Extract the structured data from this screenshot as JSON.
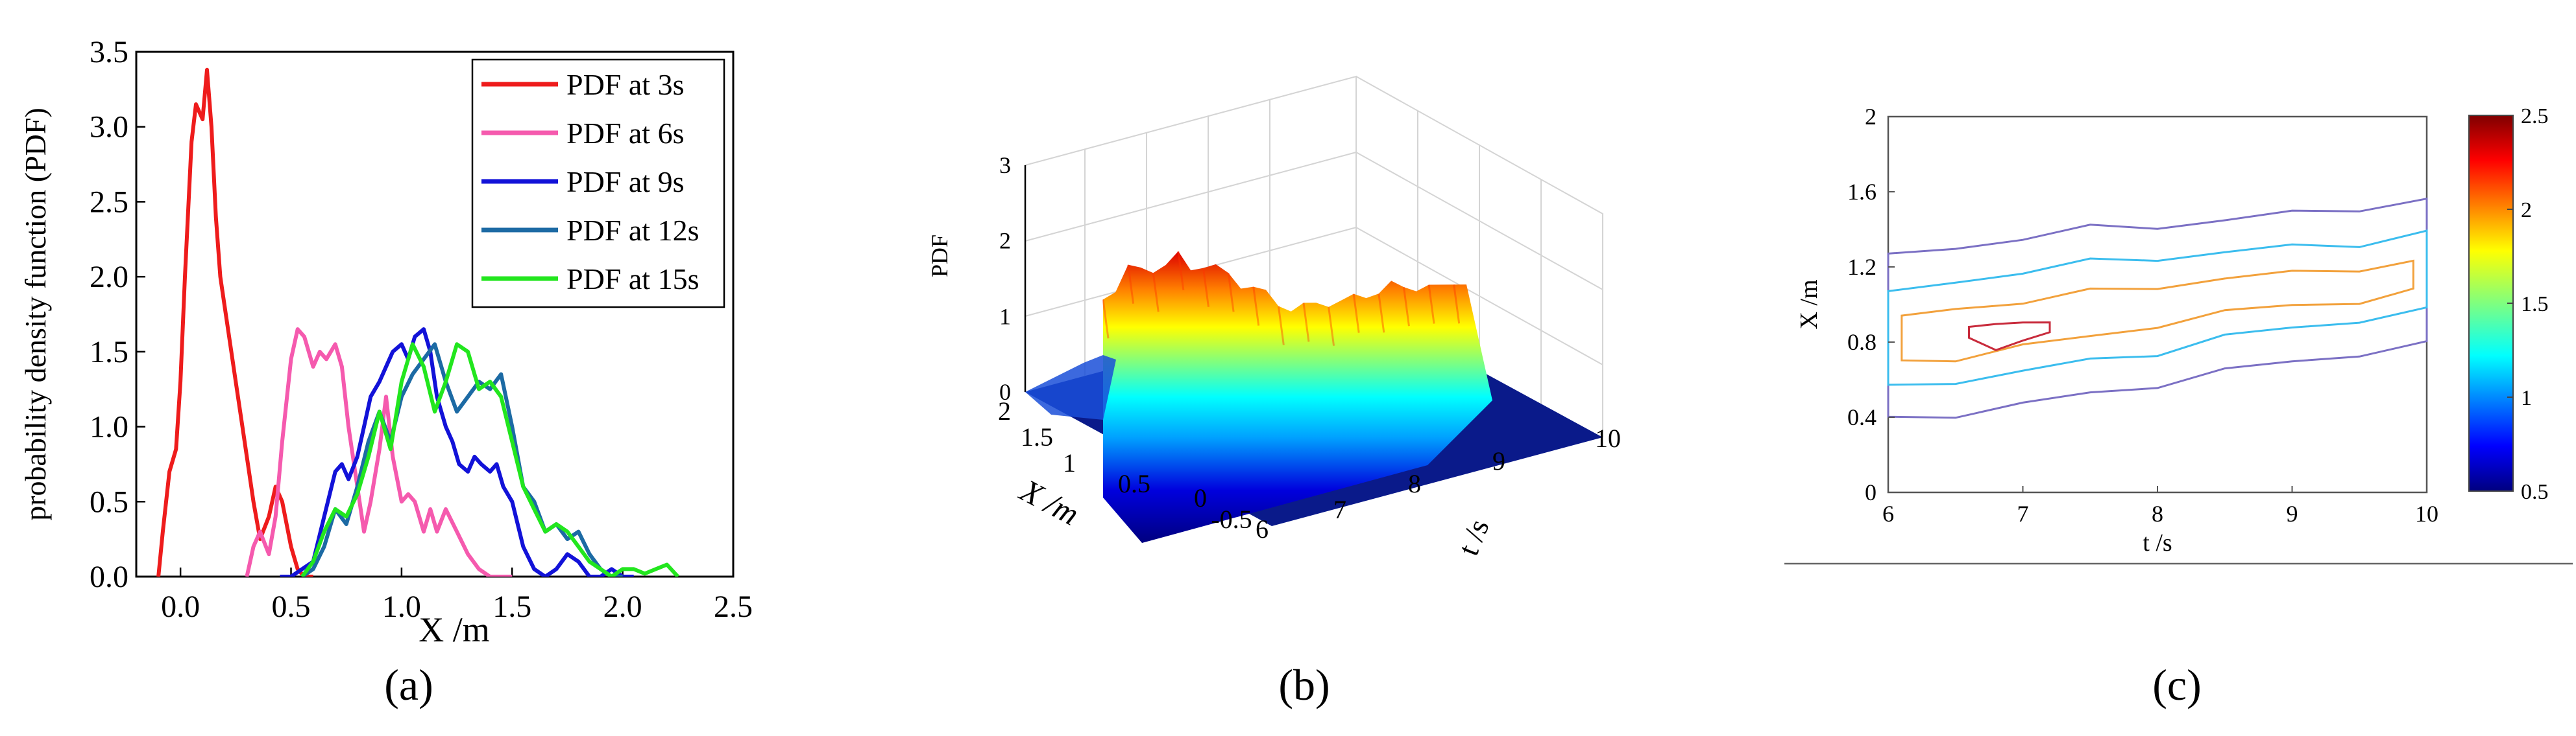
{
  "figure": {
    "panel_labels": [
      "(a)",
      "(b)",
      "(c)"
    ],
    "colors": {
      "red": "#ee1c1c",
      "pink": "#f55aae",
      "blue": "#1212d8",
      "steel": "#1c6aa4",
      "green": "#22e61e",
      "axis": "#000000",
      "grid": "#cccccc"
    }
  },
  "chart_data": [
    {
      "type": "line",
      "panel": "(a)",
      "title": "",
      "xlabel": "X /m",
      "ylabel": "probability density function (PDF)",
      "xlim": [
        -0.2,
        2.5
      ],
      "ylim": [
        0,
        3.5
      ],
      "xticks": [
        "0.0",
        "0.5",
        "1.0",
        "1.5",
        "2.0",
        "2.5"
      ],
      "yticks": [
        "0.0",
        "0.5",
        "1.0",
        "1.5",
        "2.0",
        "2.5",
        "3.0",
        "3.5"
      ],
      "legend_position": "top-right",
      "series": [
        {
          "name": "PDF at 3s",
          "color": "#ee1c1c",
          "x": [
            -0.1,
            -0.08,
            -0.05,
            -0.02,
            0.0,
            0.02,
            0.05,
            0.07,
            0.1,
            0.12,
            0.14,
            0.16,
            0.18,
            0.2,
            0.22,
            0.25,
            0.28,
            0.3,
            0.33,
            0.36,
            0.4,
            0.43,
            0.46,
            0.5,
            0.53,
            0.56,
            0.6
          ],
          "y": [
            0.0,
            0.3,
            0.7,
            0.85,
            1.3,
            2.0,
            2.9,
            3.15,
            3.05,
            3.38,
            3.0,
            2.4,
            2.0,
            1.8,
            1.6,
            1.3,
            1.0,
            0.8,
            0.5,
            0.25,
            0.4,
            0.6,
            0.5,
            0.2,
            0.05,
            0.0,
            0.0
          ]
        },
        {
          "name": "PDF at 6s",
          "color": "#f55aae",
          "x": [
            0.3,
            0.33,
            0.36,
            0.4,
            0.43,
            0.46,
            0.5,
            0.53,
            0.56,
            0.6,
            0.63,
            0.66,
            0.7,
            0.73,
            0.76,
            0.8,
            0.83,
            0.86,
            0.9,
            0.93,
            0.96,
            1.0,
            1.03,
            1.06,
            1.1,
            1.13,
            1.16,
            1.2,
            1.25,
            1.3,
            1.35,
            1.4,
            1.45,
            1.5
          ],
          "y": [
            0.0,
            0.2,
            0.3,
            0.15,
            0.4,
            0.9,
            1.45,
            1.65,
            1.6,
            1.4,
            1.5,
            1.45,
            1.55,
            1.4,
            1.0,
            0.6,
            0.3,
            0.5,
            0.85,
            1.2,
            0.8,
            0.5,
            0.55,
            0.5,
            0.3,
            0.45,
            0.3,
            0.45,
            0.3,
            0.15,
            0.05,
            0.0,
            0.0,
            0.0
          ]
        },
        {
          "name": "PDF at 9s",
          "color": "#1212d8",
          "x": [
            0.45,
            0.5,
            0.55,
            0.6,
            0.65,
            0.7,
            0.73,
            0.76,
            0.8,
            0.83,
            0.86,
            0.9,
            0.93,
            0.96,
            1.0,
            1.03,
            1.06,
            1.1,
            1.13,
            1.16,
            1.2,
            1.23,
            1.26,
            1.3,
            1.33,
            1.36,
            1.4,
            1.43,
            1.46,
            1.5,
            1.55,
            1.6,
            1.65,
            1.7,
            1.75,
            1.8,
            1.85,
            1.9,
            1.95,
            2.0,
            2.05
          ],
          "y": [
            0.0,
            0.0,
            0.05,
            0.1,
            0.4,
            0.7,
            0.75,
            0.65,
            0.8,
            1.0,
            1.2,
            1.3,
            1.4,
            1.5,
            1.55,
            1.45,
            1.6,
            1.65,
            1.5,
            1.2,
            1.0,
            0.9,
            0.75,
            0.7,
            0.8,
            0.75,
            0.7,
            0.75,
            0.6,
            0.5,
            0.2,
            0.05,
            0.0,
            0.05,
            0.15,
            0.1,
            0.0,
            0.0,
            0.05,
            0.0,
            0.0
          ]
        },
        {
          "name": "PDF at 12s",
          "color": "#1c6aa4",
          "x": [
            0.55,
            0.6,
            0.65,
            0.7,
            0.75,
            0.8,
            0.85,
            0.9,
            0.95,
            1.0,
            1.05,
            1.1,
            1.15,
            1.2,
            1.25,
            1.3,
            1.35,
            1.4,
            1.45,
            1.5,
            1.55,
            1.6,
            1.65,
            1.7,
            1.75,
            1.8,
            1.85,
            1.9,
            1.95,
            2.0
          ],
          "y": [
            0.0,
            0.05,
            0.2,
            0.45,
            0.35,
            0.6,
            0.9,
            1.1,
            0.9,
            1.2,
            1.35,
            1.45,
            1.55,
            1.3,
            1.1,
            1.2,
            1.3,
            1.25,
            1.35,
            1.0,
            0.6,
            0.5,
            0.3,
            0.35,
            0.25,
            0.3,
            0.15,
            0.05,
            0.0,
            0.0
          ]
        },
        {
          "name": "PDF at 15s",
          "color": "#22e61e",
          "x": [
            0.55,
            0.6,
            0.65,
            0.7,
            0.75,
            0.8,
            0.85,
            0.9,
            0.95,
            1.0,
            1.05,
            1.1,
            1.15,
            1.2,
            1.25,
            1.3,
            1.35,
            1.4,
            1.45,
            1.5,
            1.55,
            1.6,
            1.65,
            1.7,
            1.75,
            1.8,
            1.85,
            1.9,
            1.95,
            2.0,
            2.05,
            2.1,
            2.15,
            2.2,
            2.25
          ],
          "y": [
            0.0,
            0.1,
            0.3,
            0.45,
            0.4,
            0.55,
            0.8,
            1.1,
            0.85,
            1.3,
            1.55,
            1.4,
            1.1,
            1.3,
            1.55,
            1.5,
            1.25,
            1.3,
            1.2,
            0.9,
            0.6,
            0.45,
            0.3,
            0.35,
            0.3,
            0.2,
            0.1,
            0.05,
            0.0,
            0.05,
            0.05,
            0.02,
            0.05,
            0.08,
            0.0
          ]
        }
      ]
    },
    {
      "type": "area",
      "panel": "(b)",
      "title": "",
      "zlabel": "PDF",
      "xlabel": "X /m",
      "ylabel": "t /s",
      "zticks": [
        "0",
        "1",
        "2",
        "3"
      ],
      "xticks": [
        "2",
        "1.5",
        "1",
        "0.5",
        "0",
        "-0.5"
      ],
      "tticks": [
        "6",
        "7",
        "8",
        "9",
        "10"
      ],
      "zlim": [
        0,
        3
      ],
      "xlim": [
        -0.5,
        2
      ],
      "tlim": [
        6,
        10
      ],
      "colormap": "jet",
      "ridge_profile_pdf": [
        1.9,
        1.85,
        2.1,
        1.95,
        1.8,
        1.85,
        2.0,
        1.75,
        1.8,
        1.9,
        1.85,
        1.7,
        1.85,
        1.95,
        1.8,
        1.75,
        1.9,
        1.85,
        1.7,
        1.8,
        1.9,
        1.75,
        1.8,
        2.05,
        1.85,
        1.7,
        1.8,
        1.75,
        1.7,
        1.65
      ]
    },
    {
      "type": "heatmap",
      "panel": "(c)",
      "title": "",
      "xlabel": "t /s",
      "ylabel": "X /m",
      "xlim": [
        6,
        10
      ],
      "ylim": [
        0,
        2
      ],
      "xticks": [
        "6",
        "7",
        "8",
        "9",
        "10"
      ],
      "yticks": [
        "0",
        "0.4",
        "0.8",
        "1.2",
        "1.6",
        "2"
      ],
      "colorbar": {
        "min": 0.5,
        "max": 2.5,
        "ticks": [
          "0.5",
          "1",
          "1.5",
          "2",
          "2.5"
        ],
        "colormap": "jet"
      },
      "contour_levels": [
        {
          "level": 0.5,
          "color": "#7b70c4",
          "t": [
            6.0,
            6.5,
            7.0,
            7.5,
            8.0,
            8.5,
            9.0,
            9.5,
            10.0
          ],
          "lower_x": [
            0.38,
            0.42,
            0.47,
            0.52,
            0.58,
            0.64,
            0.7,
            0.74,
            0.78
          ],
          "upper_x": [
            1.25,
            1.3,
            1.36,
            1.4,
            1.42,
            1.45,
            1.48,
            1.52,
            1.55
          ]
        },
        {
          "level": 1.0,
          "color": "#3bbdee",
          "t": [
            6.0,
            6.5,
            7.0,
            7.5,
            8.0,
            8.5,
            9.0,
            9.5,
            10.0
          ],
          "lower_x": [
            0.55,
            0.6,
            0.64,
            0.7,
            0.75,
            0.82,
            0.88,
            0.92,
            0.96
          ],
          "upper_x": [
            1.05,
            1.12,
            1.18,
            1.22,
            1.25,
            1.28,
            1.3,
            1.33,
            1.38
          ]
        },
        {
          "level": 1.5,
          "color": "#f2a13c",
          "t": [
            6.1,
            6.5,
            7.0,
            7.5,
            8.0,
            8.5,
            9.0,
            9.5,
            9.9
          ],
          "lower_x": [
            0.68,
            0.72,
            0.78,
            0.82,
            0.9,
            0.95,
            1.0,
            1.02,
            1.06
          ],
          "upper_x": [
            0.92,
            0.98,
            1.02,
            1.06,
            1.1,
            1.14,
            1.16,
            1.2,
            1.22
          ]
        },
        {
          "level": 2.0,
          "color": "#c82b3c",
          "t": [
            6.6,
            6.8,
            7.0,
            7.2
          ],
          "lower_x": [
            0.8,
            0.78,
            0.8,
            0.84
          ],
          "upper_x": [
            0.86,
            0.9,
            0.92,
            0.88
          ]
        }
      ]
    }
  ]
}
